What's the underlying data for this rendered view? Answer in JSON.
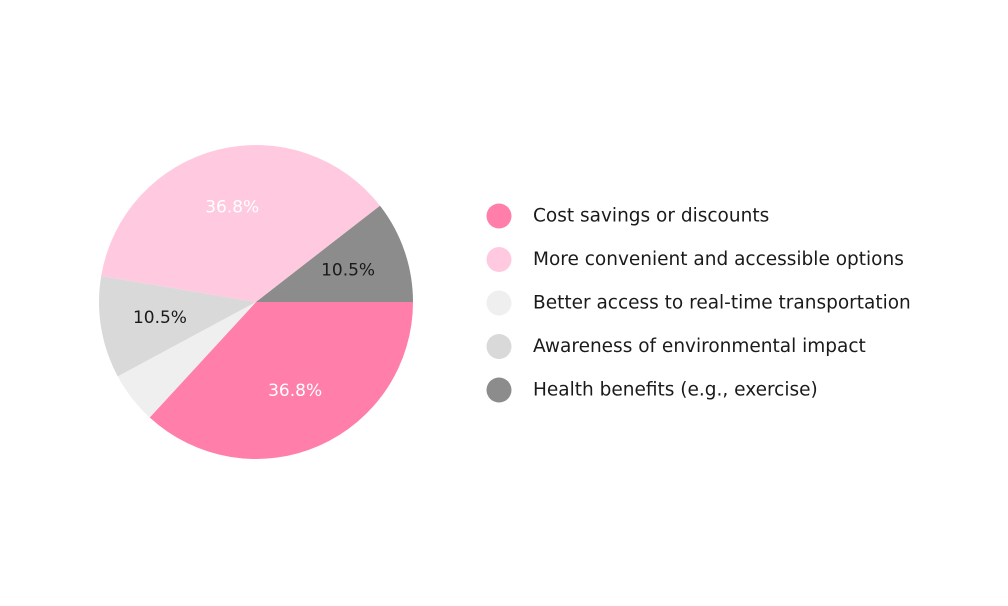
{
  "chart_data": {
    "type": "pie",
    "title": "",
    "start_angle_deg": 0,
    "direction": "clockwise",
    "legend_position": "right",
    "slices": [
      {
        "label": "Cost savings or discounts",
        "value": 36.8,
        "display": "36.8%",
        "color": "#ff7eaa",
        "label_color": "#ffffff"
      },
      {
        "label": "Better access to real-time transportation",
        "value": 5.3,
        "display": "",
        "color": "#efefef",
        "label_color": "#1a1a1a"
      },
      {
        "label": "Awareness of environmental impact",
        "value": 10.5,
        "display": "10.5%",
        "color": "#d9d9d9",
        "label_color": "#1a1a1a"
      },
      {
        "label": "More convenient and accessible options",
        "value": 36.8,
        "display": "36.8%",
        "color": "#ffcadf",
        "label_color": "#ffffff"
      },
      {
        "label": "Health benefits (e.g., exercise)",
        "value": 10.5,
        "display": "10.5%",
        "color": "#8c8c8c",
        "label_color": "#1a1a1a"
      }
    ],
    "legend": [
      {
        "label": "Cost savings or discounts",
        "color": "#ff7eaa"
      },
      {
        "label": "More convenient and accessible options",
        "color": "#ffcadf"
      },
      {
        "label": "Better access to real-time transportation",
        "color": "#efefef"
      },
      {
        "label": "Awareness of environmental impact",
        "color": "#d9d9d9"
      },
      {
        "label": "Health benefits (e.g., exercise)",
        "color": "#8c8c8c"
      }
    ]
  }
}
